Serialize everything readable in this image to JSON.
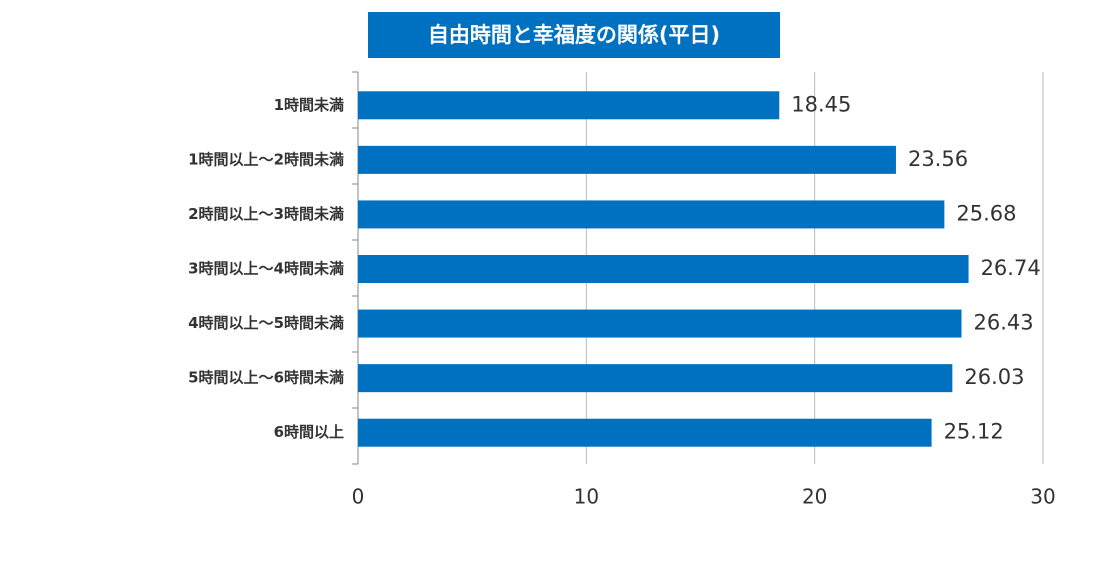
{
  "chart_data": {
    "type": "bar",
    "orientation": "horizontal",
    "title": "自由時間と幸福度の関係(平日)",
    "categories": [
      "1時間未満",
      "1時間以上～2時間未満",
      "2時間以上～3時間未満",
      "3時間以上～4時間未満",
      "4時間以上～5時間未満",
      "5時間以上～6時間未満",
      "6時間以上"
    ],
    "values": [
      18.45,
      23.56,
      25.68,
      26.74,
      26.43,
      26.03,
      25.12
    ],
    "color": "#0070c0",
    "xlim": [
      0,
      30
    ],
    "xticks": [
      0,
      10,
      20,
      30
    ],
    "grid": true
  }
}
